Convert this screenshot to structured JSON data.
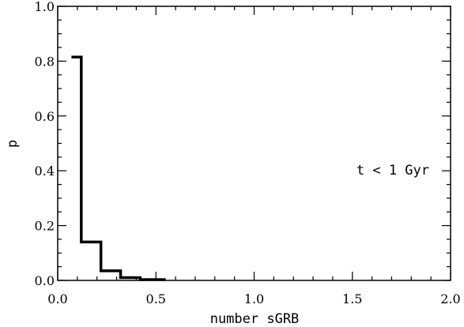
{
  "chart_data": {
    "type": "line",
    "xlabel": "number sGRB",
    "ylabel": "p",
    "xlim": [
      0.0,
      2.0
    ],
    "ylim": [
      0.0,
      1.0
    ],
    "x_ticks": [
      "0.0",
      "0.5",
      "1.0",
      "1.5",
      "2.0"
    ],
    "y_ticks": [
      "0.0",
      "0.2",
      "0.4",
      "0.6",
      "0.8",
      "1.0"
    ],
    "annotation": "t < 1 Gyr",
    "grid": false,
    "series": [
      {
        "style": "step",
        "color": "#000000",
        "bin_edges": [
          0.07,
          0.12,
          0.22,
          0.32,
          0.42,
          0.55
        ],
        "values": [
          0.815,
          0.14,
          0.035,
          0.01,
          0.003
        ]
      }
    ]
  }
}
